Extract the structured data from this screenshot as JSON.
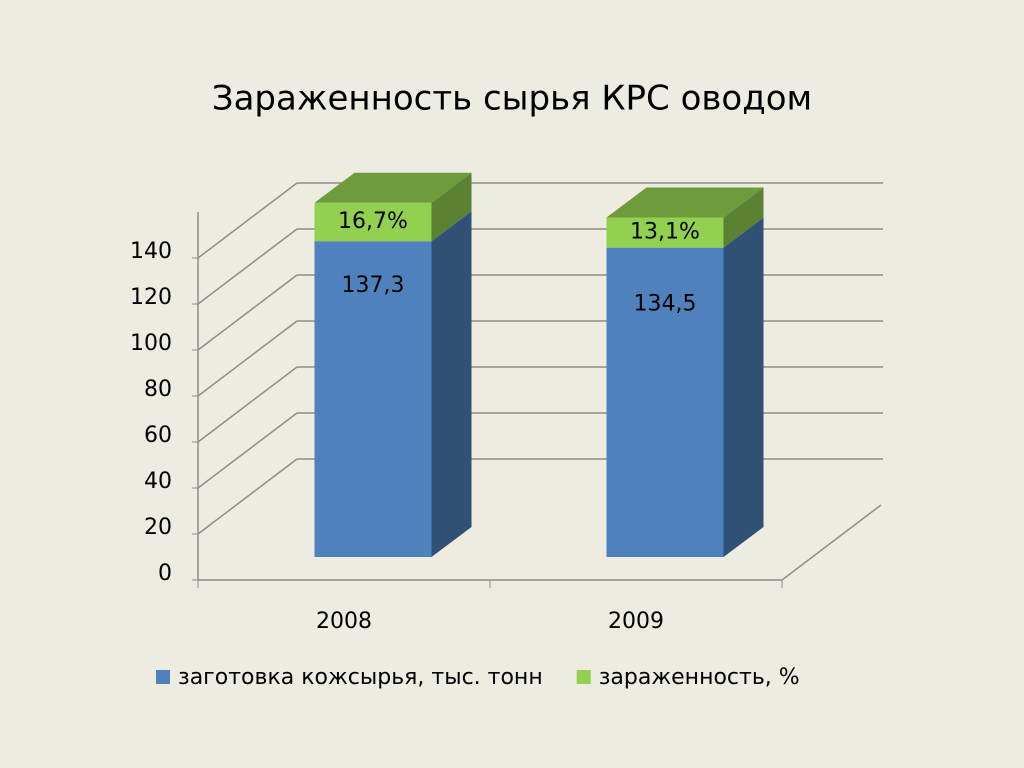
{
  "chart_data": {
    "type": "bar3d_stacked",
    "title": "Зараженность сырья КРС оводом",
    "categories": [
      "2008",
      "2009"
    ],
    "series": [
      {
        "name": "заготовка кожсырья, тыс. тонн",
        "color": "#4f81bd",
        "values": [
          137.3,
          134.5
        ],
        "value_labels": [
          "137,3",
          "134,5"
        ]
      },
      {
        "name": "зараженность, %",
        "color": "#92d050",
        "values": [
          16.7,
          13.1
        ],
        "value_labels": [
          "16,7%",
          "13,1%"
        ]
      }
    ],
    "ylim": [
      0,
      160
    ],
    "yticks": [
      0,
      20,
      40,
      60,
      80,
      100,
      120,
      140
    ],
    "grid": true,
    "legend": "bottom"
  }
}
